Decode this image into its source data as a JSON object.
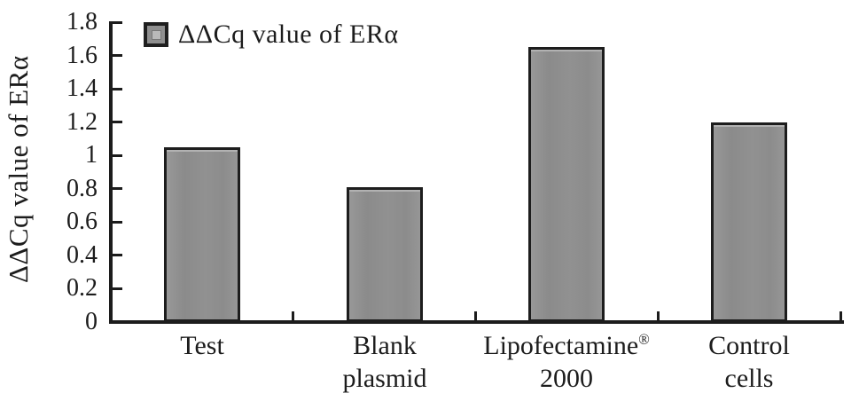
{
  "figure": {
    "background_color": "#ffffff",
    "text_color": "#1c1c1c",
    "axis_color": "#1c1c1c"
  },
  "legend": {
    "label": "ΔΔCq value of ERα",
    "marker_fill": "#8f8f8f",
    "marker_border": "#1f1f1f",
    "position": "top-left"
  },
  "chart_data": {
    "type": "bar",
    "title": "",
    "xlabel": "",
    "ylabel": "ΔΔCq value of ERα",
    "series_name": "ΔΔCq value of ERα",
    "categories": [
      "Test",
      "Blank plasmid",
      "Lipofectamine® 2000",
      "Control cells"
    ],
    "category_label_lines": [
      [
        "Test"
      ],
      [
        "Blank",
        "plasmid"
      ],
      [
        "Lipofectamine®",
        "2000"
      ],
      [
        "Control",
        "cells"
      ]
    ],
    "values": [
      1.05,
      0.81,
      1.65,
      1.2
    ],
    "ylim": [
      0,
      1.8
    ],
    "ytick_step": 0.2,
    "yticks": [
      "0",
      "0.2",
      "0.4",
      "0.6",
      "0.8",
      "1",
      "1.2",
      "1.4",
      "1.6",
      "1.8"
    ],
    "grid": false,
    "bar_color": "#8f8f8f",
    "bar_border_color": "#1d1d1d",
    "legend_position": "top-left"
  }
}
